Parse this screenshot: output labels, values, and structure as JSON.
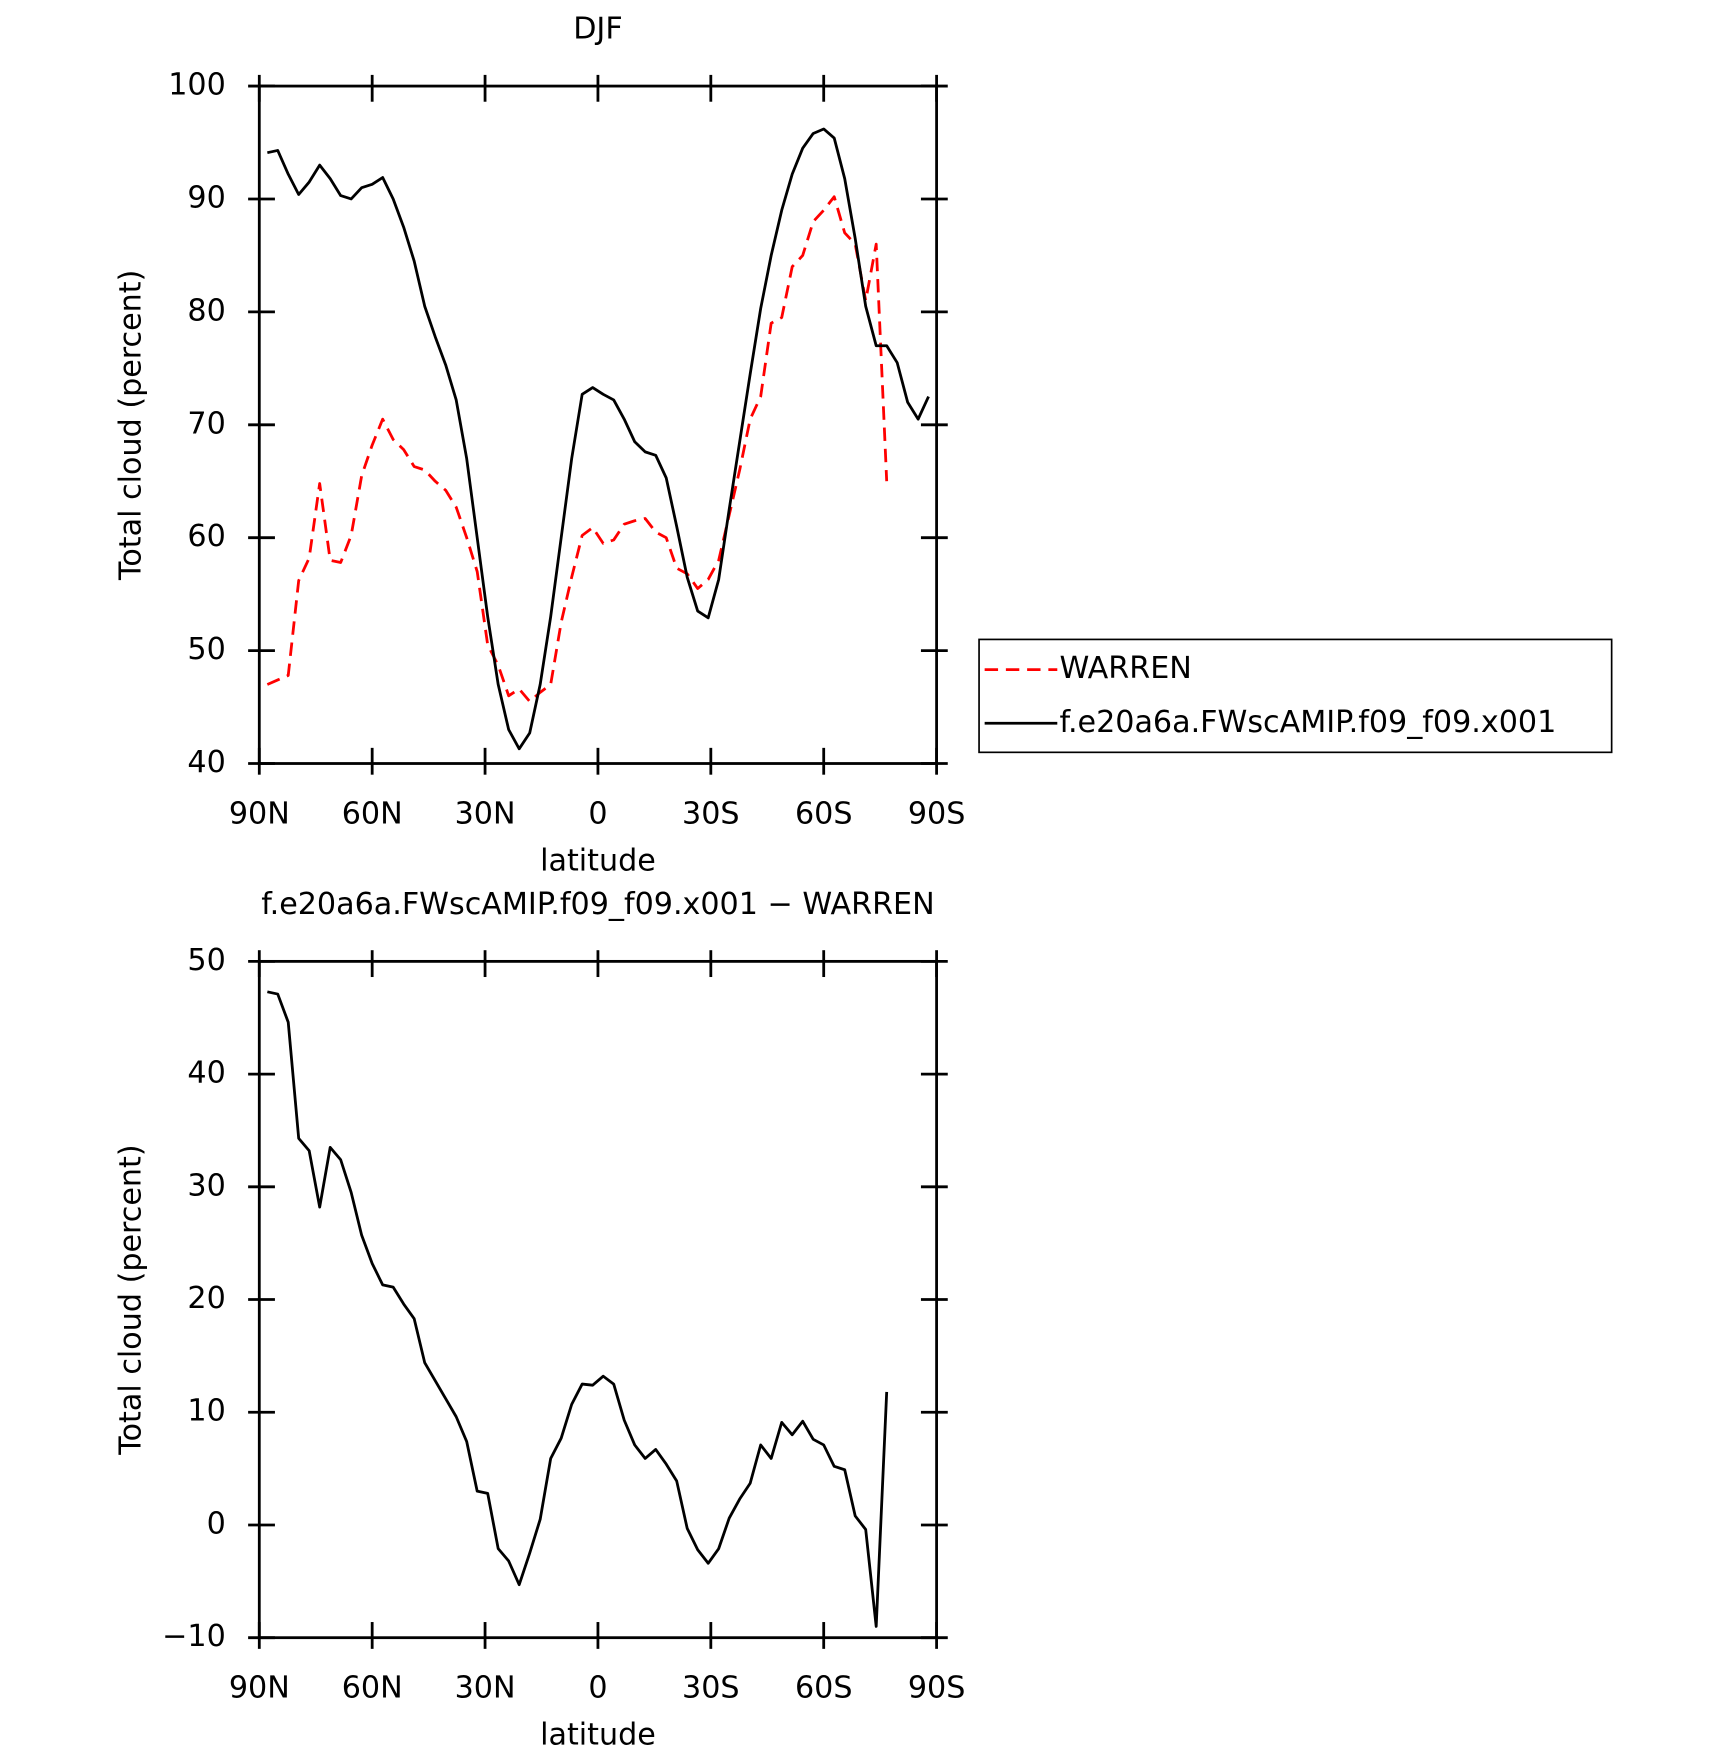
{
  "chart_data": [
    {
      "type": "line",
      "title": "DJF",
      "xlabel": "latitude",
      "ylabel": "Total cloud (percent)",
      "x": [
        87.86,
        85.1,
        82.31,
        79.53,
        76.74,
        73.95,
        71.16,
        68.37,
        65.58,
        62.79,
        60.0,
        57.21,
        54.42,
        51.63,
        48.84,
        46.04,
        43.25,
        40.46,
        37.67,
        34.88,
        32.09,
        29.3,
        26.51,
        23.72,
        20.93,
        18.14,
        15.35,
        12.56,
        9.77,
        6.98,
        4.19,
        1.4,
        -1.4,
        -4.19,
        -6.98,
        -9.77,
        -12.56,
        -15.35,
        -18.14,
        -20.93,
        -23.72,
        -26.51,
        -29.3,
        -32.09,
        -34.88,
        -37.67,
        -40.46,
        -43.25,
        -46.04,
        -48.84,
        -51.63,
        -54.42,
        -57.21,
        -60.0,
        -62.79,
        -65.58,
        -68.37,
        -71.16,
        -73.95,
        -76.74,
        -79.53,
        -82.31,
        -85.1,
        -87.86
      ],
      "xlim": [
        90,
        -90
      ],
      "xticks": [
        {
          "value": 90,
          "label": "90N"
        },
        {
          "value": 60,
          "label": "60N"
        },
        {
          "value": 30,
          "label": "30N"
        },
        0,
        {
          "value": -30,
          "label": "30S"
        },
        {
          "value": -60,
          "label": "60S"
        },
        {
          "value": -90,
          "label": "90S"
        }
      ],
      "ylim": [
        40,
        100
      ],
      "yticks": [
        40,
        50,
        60,
        70,
        80,
        90,
        100
      ],
      "legend": "outside right",
      "series": [
        {
          "name": "WARREN",
          "color": "#ff0000",
          "dashed": true,
          "values": [
            47.0,
            47.4,
            47.8,
            56.2,
            58.2,
            64.8,
            58.0,
            57.8,
            60.2,
            65.5,
            68.2,
            70.5,
            68.7,
            67.8,
            66.3,
            66.0,
            65.0,
            64.2,
            62.7,
            60.0,
            57.0,
            50.5,
            48.7,
            46.0,
            46.6,
            45.5,
            46.3,
            47.0,
            52.5,
            56.5,
            60.2,
            60.9,
            59.5,
            59.8,
            61.2,
            61.5,
            61.7,
            60.5,
            60.0,
            57.3,
            56.8,
            55.5,
            56.3,
            58.0,
            62.0,
            66.0,
            70.5,
            72.5,
            79.0,
            79.5,
            84.0,
            85.0,
            88.0,
            89.0,
            90.2,
            87.0,
            86.0,
            81.0,
            86.0,
            65.0,
            null,
            null,
            null,
            null
          ]
        },
        {
          "name": "f.e20a6a.FWscAMIP.f09_f09.x001",
          "color": "#000000",
          "dashed": false,
          "values": [
            94.1,
            94.3,
            92.2,
            90.4,
            91.5,
            93.0,
            91.8,
            90.3,
            90.0,
            91.0,
            91.3,
            91.9,
            90.0,
            87.5,
            84.5,
            80.5,
            77.8,
            75.3,
            72.2,
            67.0,
            60.0,
            53.0,
            47.0,
            43.0,
            41.3,
            42.7,
            47.0,
            53.0,
            60.0,
            67.0,
            72.7,
            73.3,
            72.7,
            72.2,
            70.5,
            68.5,
            67.6,
            67.3,
            65.3,
            61.0,
            56.5,
            53.5,
            52.9,
            56.3,
            62.5,
            68.5,
            74.5,
            80.3,
            85.0,
            89.0,
            92.2,
            94.5,
            95.8,
            96.2,
            95.4,
            91.8,
            86.5,
            80.5,
            77.0,
            77.0,
            75.5,
            72.0,
            70.5,
            72.5
          ]
        }
      ]
    },
    {
      "type": "line",
      "title": "f.e20a6a.FWscAMIP.f09_f09.x001 − WARREN",
      "xlabel": "latitude",
      "ylabel": "Total cloud (percent)",
      "x": [
        87.86,
        85.1,
        82.31,
        79.53,
        76.74,
        73.95,
        71.16,
        68.37,
        65.58,
        62.79,
        60.0,
        57.21,
        54.42,
        51.63,
        48.84,
        46.04,
        43.25,
        40.46,
        37.67,
        34.88,
        32.09,
        29.3,
        26.51,
        23.72,
        20.93,
        18.14,
        15.35,
        12.56,
        9.77,
        6.98,
        4.19,
        1.4,
        -1.4,
        -4.19,
        -6.98,
        -9.77,
        -12.56,
        -15.35,
        -18.14,
        -20.93,
        -23.72,
        -26.51,
        -29.3,
        -32.09,
        -34.88,
        -37.67,
        -40.46,
        -43.25,
        -46.04,
        -48.84,
        -51.63,
        -54.42,
        -57.21,
        -60.0,
        -62.79,
        -65.58,
        -68.37,
        -71.16,
        -73.95,
        -76.74,
        -79.53,
        -82.31,
        -85.1,
        -87.86
      ],
      "xlim": [
        90,
        -90
      ],
      "xticks": [
        {
          "value": 90,
          "label": "90N"
        },
        {
          "value": 60,
          "label": "60N"
        },
        {
          "value": 30,
          "label": "30N"
        },
        0,
        {
          "value": -30,
          "label": "30S"
        },
        {
          "value": -60,
          "label": "60S"
        },
        {
          "value": -90,
          "label": "90S"
        }
      ],
      "ylim": [
        -10,
        50
      ],
      "yticks": [
        {
          "value": -10,
          "label": "−10"
        },
        0,
        10,
        20,
        30,
        40,
        50
      ],
      "series": [
        {
          "color": "#000000",
          "dashed": false,
          "values": [
            47.3,
            47.1,
            44.6,
            34.3,
            33.2,
            28.2,
            33.5,
            32.4,
            29.5,
            25.7,
            23.2,
            21.3,
            21.1,
            19.6,
            18.3,
            14.4,
            12.8,
            11.2,
            9.6,
            7.4,
            3.0,
            2.8,
            -2.1,
            -3.2,
            -5.3,
            -2.5,
            0.5,
            5.9,
            7.7,
            10.7,
            12.5,
            12.4,
            13.2,
            12.5,
            9.3,
            7.1,
            5.9,
            6.7,
            5.4,
            3.9,
            -0.3,
            -2.2,
            -3.4,
            -2.1,
            0.6,
            2.3,
            3.7,
            7.1,
            5.9,
            9.1,
            8.0,
            9.2,
            7.6,
            7.1,
            5.2,
            4.9,
            0.8,
            -0.4,
            -9.0,
            11.8,
            null,
            null,
            null,
            null
          ]
        }
      ]
    }
  ]
}
